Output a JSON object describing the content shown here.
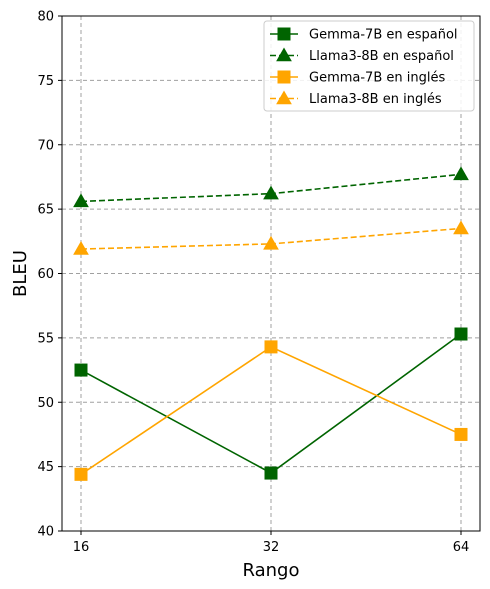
{
  "chart_data": {
    "type": "line",
    "xlabel": "Rango",
    "ylabel": "BLEU",
    "x": [
      "16",
      "32",
      "64"
    ],
    "ylim": [
      40,
      80
    ],
    "yticks": [
      40,
      45,
      50,
      55,
      60,
      65,
      70,
      75,
      80
    ],
    "grid": true,
    "legend_position": "top-right",
    "series": [
      {
        "name": "Gemma-7B en español",
        "values": [
          52.5,
          44.5,
          55.3
        ],
        "color": "#006400",
        "marker": "square",
        "linestyle": "solid"
      },
      {
        "name": "Llama3-8B en español",
        "values": [
          65.6,
          66.2,
          67.7
        ],
        "color": "#006400",
        "marker": "triangle",
        "linestyle": "dashed"
      },
      {
        "name": "Gemma-7B en inglés",
        "values": [
          44.4,
          54.3,
          47.5
        ],
        "color": "#FFA500",
        "marker": "square",
        "linestyle": "solid"
      },
      {
        "name": "Llama3-8B en inglés",
        "values": [
          61.9,
          62.3,
          63.5
        ],
        "color": "#FFA500",
        "marker": "triangle",
        "linestyle": "dashed"
      }
    ]
  }
}
